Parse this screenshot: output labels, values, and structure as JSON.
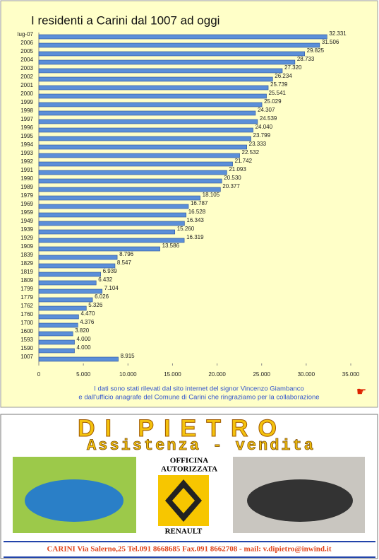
{
  "chart_data": {
    "type": "bar",
    "orientation": "horizontal",
    "title": "I residenti a Carini dal 1007 ad oggi",
    "categories": [
      "lug-07",
      "2006",
      "2005",
      "2004",
      "2003",
      "2002",
      "2001",
      "2000",
      "1999",
      "1998",
      "1997",
      "1996",
      "1995",
      "1994",
      "1993",
      "1992",
      "1991",
      "1990",
      "1989",
      "1979",
      "1969",
      "1959",
      "1949",
      "1939",
      "1929",
      "1909",
      "1839",
      "1829",
      "1819",
      "1809",
      "1799",
      "1779",
      "1762",
      "1760",
      "1700",
      "1600",
      "1593",
      "1590",
      "1007"
    ],
    "values": [
      32331,
      31506,
      29825,
      28733,
      27320,
      26234,
      25739,
      25541,
      25029,
      24307,
      24539,
      24040,
      23799,
      23333,
      22532,
      21742,
      21093,
      20530,
      20377,
      18105,
      16787,
      16528,
      16343,
      15260,
      16319,
      13586,
      8796,
      8547,
      6939,
      6432,
      7104,
      6026,
      5326,
      4470,
      4376,
      3820,
      4000,
      4000,
      8915
    ],
    "value_labels": [
      "32.331",
      "31.506",
      "29.825",
      "28.733",
      "27.320",
      "26.234",
      "25.739",
      "25.541",
      "25.029",
      "24.307",
      "24.539",
      "24.040",
      "23.799",
      "23.333",
      "22.532",
      "21.742",
      "21.093",
      "20.530",
      "20.377",
      "18.105",
      "16.787",
      "16.528",
      "16.343",
      "15.260",
      "16.319",
      "13.586",
      "8.796",
      "8.547",
      "6.939",
      "6.432",
      "7.104",
      "6.026",
      "5.326",
      "4.470",
      "4.376",
      "3.820",
      "4.000",
      "4.000",
      "8.915"
    ],
    "color": "#5b8fd8",
    "xlim": [
      0,
      35000
    ],
    "xticks": [
      0,
      {
        "value": 5000,
        "label": "5.000"
      },
      {
        "value": 10000,
        "label": "10.000"
      },
      {
        "value": 15000,
        "label": "15.000"
      },
      {
        "value": 20000,
        "label": "20.000"
      },
      {
        "value": 25000,
        "label": "25.000"
      },
      {
        "value": 30000,
        "label": "30.000"
      },
      {
        "value": 35000,
        "label": "35.000"
      }
    ],
    "note": [
      "I dati sono stati  rilevati dal sito internet  del signor Vincenzo Giambanco",
      "e dall'ufficio anagrafe del Comune di Carini che ringraziamo per la collaborazione"
    ]
  },
  "ad": {
    "name": "DI PIETRO",
    "tagline": "Assistenza - vendita",
    "badge": [
      "OFFICINA",
      "AUTORIZZATA"
    ],
    "brand": "RENAULT",
    "footer": "CARINI Via Salerno,25 Tel.091 8668685 Fax.091 8662708 - mail: v.dipietro@inwind.it"
  }
}
